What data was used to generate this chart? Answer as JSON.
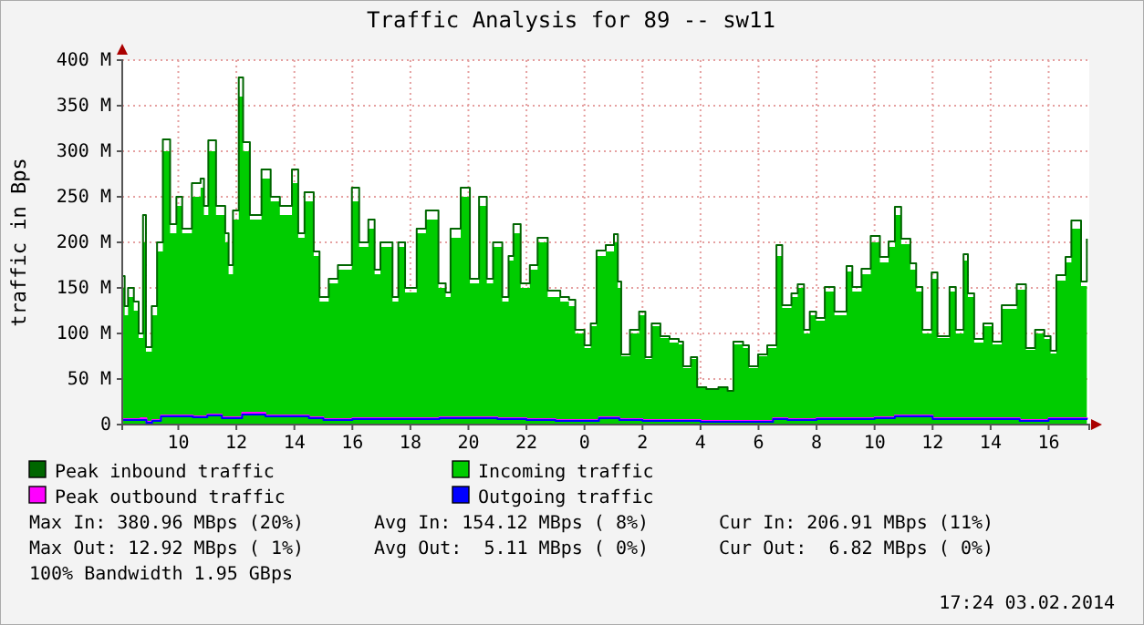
{
  "chart_data": {
    "type": "area",
    "title": "Traffic Analysis for 89 -- sw11",
    "ylabel": "traffic in Bps",
    "xlim": [
      "2014-02-02T08:04",
      "2014-02-03T17:24"
    ],
    "ylim": [
      0,
      400
    ],
    "xticks": [
      {
        "value": "2014-02-02T10:00",
        "label": "10"
      },
      {
        "value": "2014-02-02T12:00",
        "label": "12"
      },
      {
        "value": "2014-02-02T14:00",
        "label": "14"
      },
      {
        "value": "2014-02-02T16:00",
        "label": "16"
      },
      {
        "value": "2014-02-02T18:00",
        "label": "18"
      },
      {
        "value": "2014-02-02T20:00",
        "label": "20"
      },
      {
        "value": "2014-02-02T22:00",
        "label": "22"
      },
      {
        "value": "2014-02-03T00:00",
        "label": "0"
      },
      {
        "value": "2014-02-03T02:00",
        "label": "2"
      },
      {
        "value": "2014-02-03T04:00",
        "label": "4"
      },
      {
        "value": "2014-02-03T06:00",
        "label": "6"
      },
      {
        "value": "2014-02-03T08:00",
        "label": "8"
      },
      {
        "value": "2014-02-03T10:00",
        "label": "10"
      },
      {
        "value": "2014-02-03T12:00",
        "label": "12"
      },
      {
        "value": "2014-02-03T14:00",
        "label": "14"
      },
      {
        "value": "2014-02-03T16:00",
        "label": "16"
      }
    ],
    "yticks": [
      0,
      {
        "value": 50,
        "label": "50 M"
      },
      {
        "value": 100,
        "label": "100 M"
      },
      {
        "value": 150,
        "label": "150 M"
      },
      {
        "value": 200,
        "label": "200 M"
      },
      {
        "value": 250,
        "label": "250 M"
      },
      {
        "value": 300,
        "label": "300 M"
      },
      {
        "value": 350,
        "label": "350 M"
      },
      {
        "value": 400,
        "label": "400 M"
      }
    ],
    "grid": true,
    "legend": "bottom",
    "series": [
      {
        "name": "Peak inbound traffic",
        "type": "step",
        "color": "#006600",
        "x": [
          "2014-02-02T08:06",
          "2014-02-02T08:09",
          "2014-02-02T08:16",
          "2014-02-02T08:28",
          "2014-02-02T08:38",
          "2014-02-02T08:47",
          "2014-02-02T08:53",
          "2014-02-02T09:05",
          "2014-02-02T09:16",
          "2014-02-02T09:28",
          "2014-02-02T09:43",
          "2014-02-02T09:56",
          "2014-02-02T10:08",
          "2014-02-02T10:28",
          "2014-02-02T10:46",
          "2014-02-02T10:53",
          "2014-02-02T11:02",
          "2014-02-02T11:18",
          "2014-02-02T11:37",
          "2014-02-02T11:44",
          "2014-02-02T11:53",
          "2014-02-02T12:05",
          "2014-02-02T12:14",
          "2014-02-02T12:28",
          "2014-02-02T12:52",
          "2014-02-02T13:11",
          "2014-02-02T13:30",
          "2014-02-02T13:55",
          "2014-02-02T14:08",
          "2014-02-02T14:21",
          "2014-02-02T14:40",
          "2014-02-02T14:52",
          "2014-02-02T15:11",
          "2014-02-02T15:30",
          "2014-02-02T15:59",
          "2014-02-02T16:14",
          "2014-02-02T16:33",
          "2014-02-02T16:46",
          "2014-02-02T16:58",
          "2014-02-02T17:23",
          "2014-02-02T17:35",
          "2014-02-02T17:49",
          "2014-02-02T18:13",
          "2014-02-02T18:32",
          "2014-02-02T18:58",
          "2014-02-02T19:13",
          "2014-02-02T19:23",
          "2014-02-02T19:44",
          "2014-02-02T20:03",
          "2014-02-02T20:22",
          "2014-02-02T20:38",
          "2014-02-02T20:51",
          "2014-02-02T21:10",
          "2014-02-02T21:23",
          "2014-02-02T21:33",
          "2014-02-02T21:48",
          "2014-02-02T22:07",
          "2014-02-02T22:23",
          "2014-02-02T22:44",
          "2014-02-02T23:10",
          "2014-02-02T23:28",
          "2014-02-02T23:41",
          "2014-02-03T00:00",
          "2014-02-03T00:13",
          "2014-02-03T00:25",
          "2014-02-03T00:44",
          "2014-02-03T01:01",
          "2014-02-03T01:09",
          "2014-02-03T01:16",
          "2014-02-03T01:34",
          "2014-02-03T01:53",
          "2014-02-03T02:06",
          "2014-02-03T02:19",
          "2014-02-03T02:37",
          "2014-02-03T02:56",
          "2014-02-03T03:15",
          "2014-02-03T03:24",
          "2014-02-03T03:40",
          "2014-02-03T03:53",
          "2014-02-03T04:12",
          "2014-02-03T04:37",
          "2014-02-03T04:56",
          "2014-02-03T05:08",
          "2014-02-03T05:28",
          "2014-02-03T05:40",
          "2014-02-03T05:59",
          "2014-02-03T06:18",
          "2014-02-03T06:37",
          "2014-02-03T06:49",
          "2014-02-03T07:08",
          "2014-02-03T07:21",
          "2014-02-03T07:34",
          "2014-02-03T07:46",
          "2014-02-03T07:59",
          "2014-02-03T08:17",
          "2014-02-03T08:37",
          "2014-02-03T09:02",
          "2014-02-03T09:14",
          "2014-02-03T09:33",
          "2014-02-03T09:52",
          "2014-02-03T10:11",
          "2014-02-03T10:29",
          "2014-02-03T10:42",
          "2014-02-03T10:55",
          "2014-02-03T11:14",
          "2014-02-03T11:26",
          "2014-02-03T11:39",
          "2014-02-03T11:58",
          "2014-02-03T12:10",
          "2014-02-03T12:35",
          "2014-02-03T12:48",
          "2014-02-03T13:04",
          "2014-02-03T13:13",
          "2014-02-03T13:26",
          "2014-02-03T13:45",
          "2014-02-03T14:04",
          "2014-02-03T14:23",
          "2014-02-03T14:41",
          "2014-02-03T14:54",
          "2014-02-03T15:13",
          "2014-02-03T15:32",
          "2014-02-03T15:51",
          "2014-02-03T16:04",
          "2014-02-03T16:16",
          "2014-02-03T16:35",
          "2014-02-03T16:47",
          "2014-02-03T17:07",
          "2014-02-03T17:19"
        ],
        "values": [
          163,
          130,
          150,
          135,
          100,
          230,
          85,
          130,
          200,
          313,
          220,
          250,
          215,
          265,
          270,
          240,
          312,
          240,
          210,
          175,
          235,
          381,
          310,
          230,
          280,
          250,
          240,
          280,
          210,
          255,
          190,
          140,
          160,
          175,
          260,
          200,
          225,
          170,
          200,
          140,
          200,
          150,
          215,
          235,
          155,
          145,
          215,
          260,
          160,
          250,
          160,
          200,
          140,
          185,
          220,
          155,
          175,
          205,
          147,
          140,
          137,
          104,
          87,
          111,
          191,
          197,
          209,
          157,
          77,
          104,
          124,
          74,
          111,
          97,
          94,
          91,
          64,
          74,
          41,
          39,
          41,
          37,
          91,
          87,
          64,
          77,
          87,
          197,
          131,
          144,
          154,
          104,
          124,
          117,
          151,
          124,
          174,
          151,
          171,
          207,
          184,
          201,
          239,
          204,
          177,
          151,
          104,
          167,
          97,
          151,
          104,
          187,
          144,
          94,
          111,
          91,
          131,
          131,
          154,
          84,
          104,
          97,
          81,
          164,
          184,
          224,
          157,
          204
        ]
      },
      {
        "name": "Incoming traffic",
        "type": "area",
        "color": "#00cc00",
        "x": [
          "2014-02-02T08:06",
          "2014-02-02T08:09",
          "2014-02-02T08:16",
          "2014-02-02T08:28",
          "2014-02-02T08:38",
          "2014-02-02T08:47",
          "2014-02-02T08:53",
          "2014-02-02T09:05",
          "2014-02-02T09:16",
          "2014-02-02T09:28",
          "2014-02-02T09:43",
          "2014-02-02T09:56",
          "2014-02-02T10:08",
          "2014-02-02T10:28",
          "2014-02-02T10:46",
          "2014-02-02T10:53",
          "2014-02-02T11:02",
          "2014-02-02T11:18",
          "2014-02-02T11:37",
          "2014-02-02T11:44",
          "2014-02-02T11:53",
          "2014-02-02T12:05",
          "2014-02-02T12:14",
          "2014-02-02T12:28",
          "2014-02-02T12:52",
          "2014-02-02T13:11",
          "2014-02-02T13:30",
          "2014-02-02T13:55",
          "2014-02-02T14:08",
          "2014-02-02T14:21",
          "2014-02-02T14:40",
          "2014-02-02T14:52",
          "2014-02-02T15:11",
          "2014-02-02T15:30",
          "2014-02-02T15:59",
          "2014-02-02T16:14",
          "2014-02-02T16:33",
          "2014-02-02T16:46",
          "2014-02-02T16:58",
          "2014-02-02T17:23",
          "2014-02-02T17:35",
          "2014-02-02T17:49",
          "2014-02-02T18:13",
          "2014-02-02T18:32",
          "2014-02-02T18:58",
          "2014-02-02T19:13",
          "2014-02-02T19:23",
          "2014-02-02T19:44",
          "2014-02-02T20:03",
          "2014-02-02T20:22",
          "2014-02-02T20:38",
          "2014-02-02T20:51",
          "2014-02-02T21:10",
          "2014-02-02T21:23",
          "2014-02-02T21:33",
          "2014-02-02T21:48",
          "2014-02-02T22:07",
          "2014-02-02T22:23",
          "2014-02-02T22:44",
          "2014-02-02T23:10",
          "2014-02-02T23:28",
          "2014-02-02T23:41",
          "2014-02-03T00:00",
          "2014-02-03T00:13",
          "2014-02-03T00:25",
          "2014-02-03T00:44",
          "2014-02-03T01:01",
          "2014-02-03T01:09",
          "2014-02-03T01:16",
          "2014-02-03T01:34",
          "2014-02-03T01:53",
          "2014-02-03T02:06",
          "2014-02-03T02:19",
          "2014-02-03T02:37",
          "2014-02-03T02:56",
          "2014-02-03T03:15",
          "2014-02-03T03:24",
          "2014-02-03T03:40",
          "2014-02-03T03:53",
          "2014-02-03T04:12",
          "2014-02-03T04:37",
          "2014-02-03T04:56",
          "2014-02-03T05:08",
          "2014-02-03T05:28",
          "2014-02-03T05:40",
          "2014-02-03T05:59",
          "2014-02-03T06:18",
          "2014-02-03T06:37",
          "2014-02-03T06:49",
          "2014-02-03T07:08",
          "2014-02-03T07:21",
          "2014-02-03T07:34",
          "2014-02-03T07:46",
          "2014-02-03T07:59",
          "2014-02-03T08:17",
          "2014-02-03T08:37",
          "2014-02-03T09:02",
          "2014-02-03T09:14",
          "2014-02-03T09:33",
          "2014-02-03T09:52",
          "2014-02-03T10:11",
          "2014-02-03T10:29",
          "2014-02-03T10:42",
          "2014-02-03T10:55",
          "2014-02-03T11:14",
          "2014-02-03T11:26",
          "2014-02-03T11:39",
          "2014-02-03T11:58",
          "2014-02-03T12:10",
          "2014-02-03T12:35",
          "2014-02-03T12:48",
          "2014-02-03T13:04",
          "2014-02-03T13:13",
          "2014-02-03T13:26",
          "2014-02-03T13:45",
          "2014-02-03T14:04",
          "2014-02-03T14:23",
          "2014-02-03T14:41",
          "2014-02-03T14:54",
          "2014-02-03T15:13",
          "2014-02-03T15:32",
          "2014-02-03T15:51",
          "2014-02-03T16:04",
          "2014-02-03T16:16",
          "2014-02-03T16:35",
          "2014-02-03T16:47",
          "2014-02-03T17:07",
          "2014-02-03T17:19"
        ],
        "values": [
          150,
          120,
          140,
          125,
          95,
          200,
          80,
          120,
          190,
          300,
          210,
          240,
          210,
          250,
          260,
          230,
          300,
          230,
          200,
          165,
          225,
          360,
          300,
          225,
          270,
          245,
          230,
          265,
          205,
          245,
          185,
          135,
          155,
          170,
          245,
          195,
          215,
          165,
          195,
          135,
          195,
          145,
          210,
          225,
          150,
          140,
          205,
          250,
          155,
          240,
          155,
          195,
          135,
          180,
          210,
          150,
          170,
          200,
          140,
          135,
          130,
          100,
          84,
          108,
          185,
          190,
          200,
          150,
          75,
          100,
          120,
          72,
          108,
          95,
          90,
          88,
          62,
          72,
          40,
          38,
          40,
          36,
          88,
          84,
          62,
          75,
          84,
          185,
          128,
          140,
          150,
          100,
          120,
          114,
          146,
          120,
          168,
          146,
          165,
          200,
          178,
          195,
          230,
          198,
          170,
          146,
          100,
          160,
          95,
          146,
          100,
          180,
          140,
          90,
          108,
          88,
          127,
          127,
          148,
          82,
          100,
          94,
          78,
          158,
          178,
          215,
          152,
          200
        ]
      },
      {
        "name": "Peak outbound traffic",
        "type": "step",
        "color": "#ff00ff",
        "x": [
          "2014-02-02T08:06",
          "2014-02-02T08:42",
          "2014-02-02T08:54",
          "2014-02-02T09:06",
          "2014-02-02T09:24",
          "2014-02-02T10:30",
          "2014-02-02T11:00",
          "2014-02-02T11:30",
          "2014-02-02T12:12",
          "2014-02-02T13:00",
          "2014-02-02T14:30",
          "2014-02-02T15:00",
          "2014-02-02T16:00",
          "2014-02-02T18:00",
          "2014-02-02T19:00",
          "2014-02-02T20:00",
          "2014-02-02T21:00",
          "2014-02-02T22:00",
          "2014-02-02T23:00",
          "2014-02-03T00:00",
          "2014-02-03T00:30",
          "2014-02-03T01:12",
          "2014-02-03T02:00",
          "2014-02-03T04:00",
          "2014-02-03T06:00",
          "2014-02-03T06:30",
          "2014-02-03T07:00",
          "2014-02-03T08:00",
          "2014-02-03T10:00",
          "2014-02-03T10:42",
          "2014-02-03T12:00",
          "2014-02-03T14:00",
          "2014-02-03T15:00",
          "2014-02-03T16:00",
          "2014-02-03T17:19"
        ],
        "values": [
          6,
          7,
          3,
          5,
          10,
          9,
          11,
          8,
          13,
          10,
          8,
          6,
          7,
          7,
          8,
          8,
          7,
          6,
          5,
          5,
          8,
          6,
          5,
          4,
          4,
          7,
          6,
          7,
          8,
          10,
          7,
          7,
          5,
          7,
          8
        ]
      },
      {
        "name": "Outgoing traffic",
        "type": "step",
        "color": "#0000ff",
        "x": [
          "2014-02-02T08:06",
          "2014-02-02T08:42",
          "2014-02-02T08:54",
          "2014-02-02T09:06",
          "2014-02-02T09:24",
          "2014-02-02T10:30",
          "2014-02-02T11:00",
          "2014-02-02T11:30",
          "2014-02-02T12:12",
          "2014-02-02T13:00",
          "2014-02-02T14:30",
          "2014-02-02T15:00",
          "2014-02-02T16:00",
          "2014-02-02T18:00",
          "2014-02-02T19:00",
          "2014-02-02T20:00",
          "2014-02-02T21:00",
          "2014-02-02T22:00",
          "2014-02-02T23:00",
          "2014-02-03T00:00",
          "2014-02-03T00:30",
          "2014-02-03T01:12",
          "2014-02-03T02:00",
          "2014-02-03T04:00",
          "2014-02-03T06:00",
          "2014-02-03T06:30",
          "2014-02-03T07:00",
          "2014-02-03T08:00",
          "2014-02-03T10:00",
          "2014-02-03T10:42",
          "2014-02-03T12:00",
          "2014-02-03T14:00",
          "2014-02-03T15:00",
          "2014-02-03T16:00",
          "2014-02-03T17:19"
        ],
        "values": [
          5,
          5,
          2,
          4,
          9,
          8,
          10,
          7,
          11,
          9,
          7,
          5,
          6,
          6,
          7,
          7,
          6,
          5,
          4,
          4,
          7,
          5,
          4,
          3,
          3,
          6,
          5,
          6,
          7,
          9,
          6,
          6,
          4,
          6,
          7
        ]
      }
    ],
    "annotations": [
      "Max In: 380.96 MBps (20%)",
      "Avg In: 154.12 MBps ( 8%)",
      "Cur In: 206.91 MBps (11%)",
      "Max Out: 12.92 MBps ( 1%)",
      "Avg Out:  5.11 MBps ( 0%)",
      "Cur Out:  6.82 MBps ( 0%)",
      "100% Bandwidth 1.95 GBps",
      "17:24 03.02.2014"
    ]
  }
}
